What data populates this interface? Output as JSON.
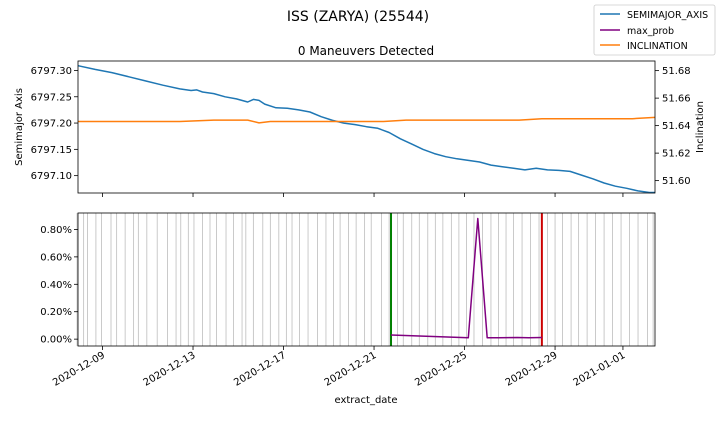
{
  "figure": {
    "suptitle": "ISS (ZARYA) (25544)",
    "xlabel": "extract_date"
  },
  "legend": {
    "placement": "top-right",
    "entries": [
      {
        "label": "SEMIMAJOR_AXIS",
        "color": "#1f77b4"
      },
      {
        "label": "max_prob",
        "color": "#800080"
      },
      {
        "label": "INCLINATION",
        "color": "#ff7f0e"
      }
    ]
  },
  "chart_data": [
    {
      "type": "line",
      "title": "0 Maneuvers Detected",
      "xlabel": "extract_date",
      "ylabel": "Semimajor Axis",
      "y2label": "Inclination",
      "xlim": [
        "2020-12-07T22:00",
        "2021-01-02T10:00"
      ],
      "ylim": [
        6797.067,
        6797.318
      ],
      "y2lim": [
        51.591,
        51.687
      ],
      "xticks": [
        "2020-12-09",
        "2020-12-13",
        "2020-12-17",
        "2020-12-21",
        "2020-12-25",
        "2020-12-29",
        "2021-01-01"
      ],
      "yticks": [
        6797.1,
        6797.15,
        6797.2,
        6797.25,
        6797.3
      ],
      "yticklabels": [
        "6797.10",
        "6797.15",
        "6797.20",
        "6797.25",
        "6797.30"
      ],
      "y2ticks": [
        51.6,
        51.62,
        51.64,
        51.66,
        51.68
      ],
      "y2ticklabels": [
        "51.60",
        "51.62",
        "51.64",
        "51.66",
        "51.68"
      ],
      "grid": false,
      "series": [
        {
          "name": "SEMIMAJOR_AXIS",
          "axis": "left",
          "color": "#1f77b4",
          "x": [
            "2020-12-07T22:00",
            "2020-12-08T16:00",
            "2020-12-09T10:00",
            "2020-12-10T04:00",
            "2020-12-10T22:00",
            "2020-12-11T16:00",
            "2020-12-12T10:00",
            "2020-12-12T22:00",
            "2020-12-13T04:00",
            "2020-12-13T10:00",
            "2020-12-13T22:00",
            "2020-12-14T10:00",
            "2020-12-14T22:00",
            "2020-12-15T10:00",
            "2020-12-15T16:00",
            "2020-12-15T22:00",
            "2020-12-16T04:00",
            "2020-12-16T16:00",
            "2020-12-17T04:00",
            "2020-12-17T16:00",
            "2020-12-18T04:00",
            "2020-12-18T16:00",
            "2020-12-19T04:00",
            "2020-12-19T16:00",
            "2020-12-20T04:00",
            "2020-12-20T16:00",
            "2020-12-21T04:00",
            "2020-12-21T16:00",
            "2020-12-22T04:00",
            "2020-12-22T16:00",
            "2020-12-23T04:00",
            "2020-12-23T16:00",
            "2020-12-24T04:00",
            "2020-12-24T16:00",
            "2020-12-25T04:00",
            "2020-12-25T16:00",
            "2020-12-26T04:00",
            "2020-12-26T16:00",
            "2020-12-27T04:00",
            "2020-12-27T16:00",
            "2020-12-28T04:00",
            "2020-12-28T16:00",
            "2020-12-29T04:00",
            "2020-12-29T16:00",
            "2020-12-30T04:00",
            "2020-12-30T16:00",
            "2020-12-31T04:00",
            "2020-12-31T16:00",
            "2021-01-01T04:00",
            "2021-01-01T16:00",
            "2021-01-02T04:00",
            "2021-01-02T10:00"
          ],
          "y": [
            6797.309,
            6797.302,
            6797.296,
            6797.288,
            6797.28,
            6797.272,
            6797.265,
            6797.262,
            6797.263,
            6797.259,
            6797.256,
            6797.25,
            6797.246,
            6797.24,
            6797.245,
            6797.243,
            6797.236,
            6797.229,
            6797.228,
            6797.225,
            6797.221,
            6797.212,
            6797.205,
            6797.2,
            6797.197,
            6797.193,
            6797.19,
            6797.182,
            6797.17,
            6797.16,
            6797.15,
            6797.142,
            6797.136,
            6797.132,
            6797.129,
            6797.126,
            6797.12,
            6797.117,
            6797.114,
            6797.111,
            6797.114,
            6797.111,
            6797.11,
            6797.108,
            6797.101,
            6797.094,
            6797.086,
            6797.08,
            6797.076,
            6797.071,
            6797.068,
            6797.068
          ]
        },
        {
          "name": "INCLINATION",
          "axis": "right",
          "color": "#ff7f0e",
          "x": [
            "2020-12-07T22:00",
            "2020-12-09T10:00",
            "2020-12-10T22:00",
            "2020-12-12T10:00",
            "2020-12-13T22:00",
            "2020-12-15T10:00",
            "2020-12-15T22:00",
            "2020-12-16T10:00",
            "2020-12-17T10:00",
            "2020-12-18T10:00",
            "2020-12-19T10:00",
            "2020-12-20T10:00",
            "2020-12-21T10:00",
            "2020-12-22T10:00",
            "2020-12-23T10:00",
            "2020-12-24T10:00",
            "2020-12-25T10:00",
            "2020-12-26T10:00",
            "2020-12-27T10:00",
            "2020-12-28T10:00",
            "2020-12-29T10:00",
            "2020-12-30T10:00",
            "2020-12-31T10:00",
            "2021-01-01T10:00",
            "2021-01-02T10:00"
          ],
          "y": [
            51.643,
            51.643,
            51.643,
            51.643,
            51.644,
            51.644,
            51.642,
            51.643,
            51.643,
            51.643,
            51.643,
            51.643,
            51.643,
            51.644,
            51.644,
            51.644,
            51.644,
            51.644,
            51.644,
            51.645,
            51.645,
            51.645,
            51.645,
            51.645,
            51.646
          ]
        }
      ]
    },
    {
      "type": "line",
      "xlim": [
        "2020-12-07T22:00",
        "2021-01-02T10:00"
      ],
      "ylim": [
        -0.0005,
        0.0092
      ],
      "yticks": [
        0.0,
        0.002,
        0.004,
        0.006,
        0.008
      ],
      "yticklabels": [
        "0.00%",
        "0.20%",
        "0.40%",
        "0.60%",
        "0.80%"
      ],
      "xticks": [
        "2020-12-09",
        "2020-12-13",
        "2020-12-17",
        "2020-12-21",
        "2020-12-25",
        "2020-12-29",
        "2021-01-01"
      ],
      "xticklabels": [
        "2020-12-09",
        "2020-12-13",
        "2020-12-17",
        "2020-12-21",
        "2020-12-25",
        "2020-12-29",
        "2021-01-01"
      ],
      "grid": false,
      "series": [
        {
          "name": "max_prob",
          "color": "#800080",
          "x": [
            "2020-12-21T18:00",
            "2020-12-25T04:00",
            "2020-12-25T14:00",
            "2020-12-26T00:00",
            "2020-12-26T12:00",
            "2020-12-27T08:00",
            "2020-12-27T20:00",
            "2020-12-28T10:00"
          ],
          "y": [
            0.0003,
            0.0001,
            0.0088,
            0.0001,
            0.0001,
            0.00012,
            0.0001,
            0.00012
          ]
        }
      ],
      "vertical_lines": [
        {
          "x": "2020-12-21T18:00",
          "color": "#008000"
        },
        {
          "x": "2020-12-28T10:00",
          "color": "#cc0000"
        }
      ],
      "observation_dates": [
        "2020-12-07T21:00",
        "2020-12-08T04:00",
        "2020-12-08T08:00",
        "2020-12-08T17:00",
        "2020-12-08T23:00",
        "2020-12-09T09:00",
        "2020-12-09T15:00",
        "2020-12-10T00:00",
        "2020-12-10T09:00",
        "2020-12-10T14:00",
        "2020-12-10T23:00",
        "2020-12-11T10:00",
        "2020-12-11T21:00",
        "2020-12-12T06:00",
        "2020-12-12T11:00",
        "2020-12-12T19:00",
        "2020-12-13T01:00",
        "2020-12-13T10:00",
        "2020-12-13T18:00",
        "2020-12-14T01:00",
        "2020-12-14T11:00",
        "2020-12-14T19:00",
        "2020-12-15T04:00",
        "2020-12-15T08:00",
        "2020-12-15T16:00",
        "2020-12-16T02:00",
        "2020-12-16T10:00",
        "2020-12-16T19:00",
        "2020-12-17T03:00",
        "2020-12-17T09:00",
        "2020-12-17T17:00",
        "2020-12-18T02:00",
        "2020-12-18T12:00",
        "2020-12-18T21:00",
        "2020-12-19T05:00",
        "2020-12-19T12:00",
        "2020-12-19T21:00",
        "2020-12-20T05:00",
        "2020-12-20T14:00",
        "2020-12-20T21:00",
        "2020-12-21T08:00",
        "2020-12-21T16:00",
        "2020-12-22T01:00",
        "2020-12-22T07:00",
        "2020-12-22T16:00",
        "2020-12-23T00:00",
        "2020-12-23T09:00",
        "2020-12-23T17:00",
        "2020-12-24T01:00",
        "2020-12-24T10:00",
        "2020-12-24T18:00",
        "2020-12-25T02:00",
        "2020-12-25T10:00",
        "2020-12-25T19:00",
        "2020-12-26T04:00",
        "2020-12-26T12:00",
        "2020-12-26T20:00",
        "2020-12-27T04:00",
        "2020-12-27T13:00",
        "2020-12-27T22:00",
        "2020-12-28T07:00",
        "2020-12-28T16:00",
        "2020-12-29T00:00",
        "2020-12-29T08:00",
        "2020-12-29T17:00",
        "2020-12-30T01:00",
        "2020-12-30T10:00",
        "2020-12-30T19:00",
        "2020-12-31T04:00",
        "2020-12-31T13:00",
        "2020-12-31T22:00",
        "2021-01-01T07:00",
        "2021-01-01T16:00",
        "2021-01-02T02:00",
        "2021-01-02T08:00"
      ]
    }
  ]
}
